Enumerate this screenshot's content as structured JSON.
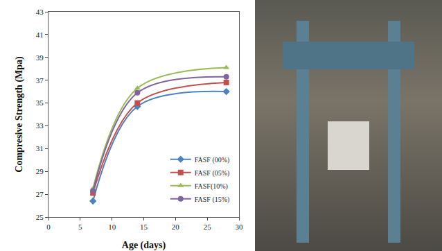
{
  "chart_data": {
    "type": "line",
    "xlabel": "Age (days)",
    "ylabel": "Compresive Strength (Mpa)",
    "x": [
      7,
      14,
      28
    ],
    "series": [
      {
        "name": "FASF (00%)",
        "color": "#4f81bd",
        "marker": "diamond",
        "values": [
          26.4,
          34.7,
          36.0
        ]
      },
      {
        "name": "FASF (05%)",
        "color": "#c0504d",
        "marker": "square",
        "values": [
          27.1,
          35.0,
          36.8
        ]
      },
      {
        "name": "FASF(10%)",
        "color": "#9bbb59",
        "marker": "triangle-up",
        "values": [
          27.5,
          36.3,
          38.1
        ]
      },
      {
        "name": "FASF (15%)",
        "color": "#8064a2",
        "marker": "circle",
        "values": [
          27.3,
          35.9,
          37.3
        ]
      }
    ],
    "line_style": "spline",
    "xlim": [
      0,
      30
    ],
    "xticks": [
      0,
      5,
      10,
      15,
      20,
      25,
      30
    ],
    "ylim": [
      25,
      43
    ],
    "yticks": [
      25,
      27,
      29,
      31,
      33,
      35,
      37,
      39,
      41,
      43
    ],
    "grid": false,
    "legend": "lower right"
  }
}
